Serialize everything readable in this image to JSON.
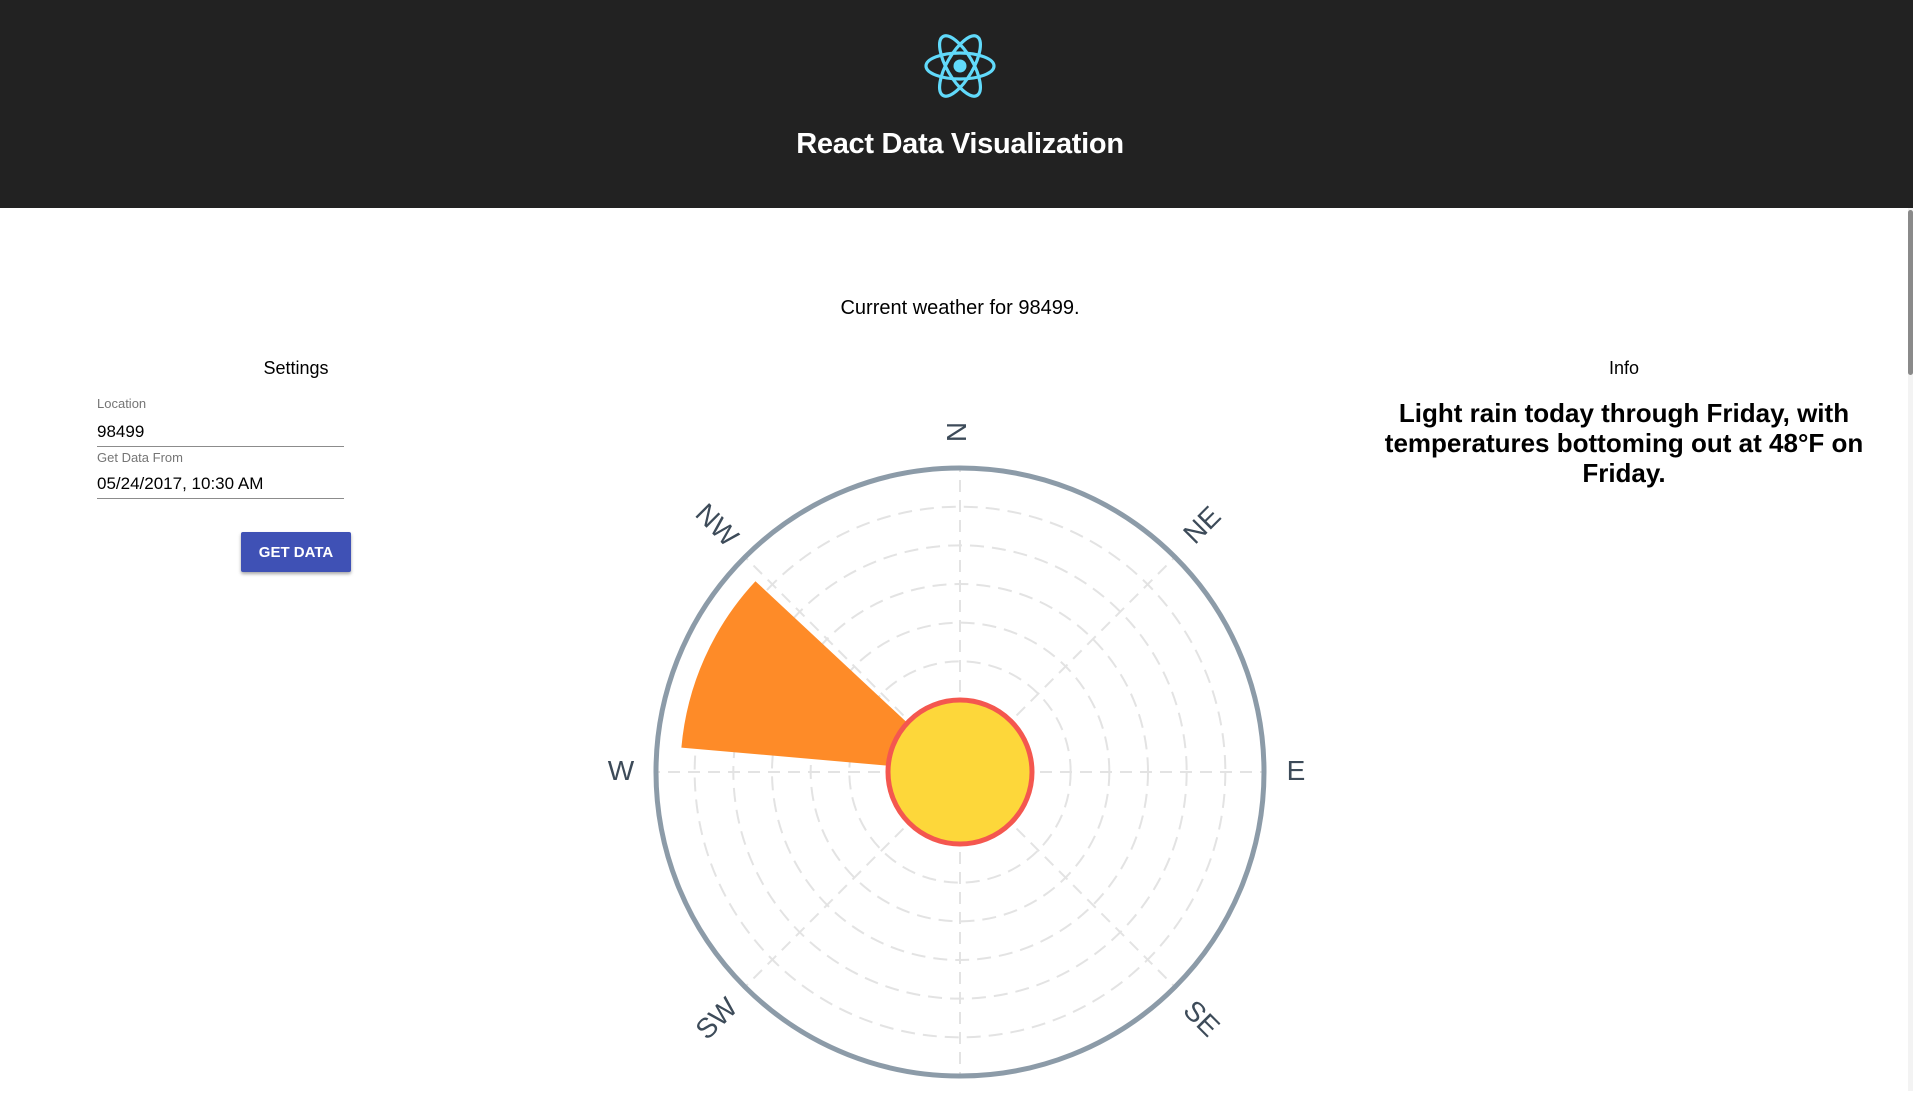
{
  "header": {
    "title": "React Data Visualization",
    "logo_icon": "react-atom-icon",
    "background": "#222222",
    "logo_color": "#61dafb"
  },
  "main": {
    "current_weather": "Current weather for 98499."
  },
  "settings": {
    "title": "Settings",
    "location_label": "Location",
    "location_value": "98499",
    "date_label": "Get Data From",
    "date_value": "05/24/2017, 10:30 AM",
    "button_label": "GET DATA",
    "button_color": "#3f51b5"
  },
  "info": {
    "title": "Info",
    "text": "Light rain today through Friday, with temperatures bottoming out at 48°F on Friday."
  },
  "chart_data": {
    "type": "polar",
    "directions": [
      "N",
      "NE",
      "E",
      "SE",
      "SW",
      "W",
      "NW"
    ],
    "wind_wedge": {
      "from_bearing_deg": 275,
      "to_bearing_deg": 313,
      "magnitude_fraction": 0.92,
      "color": "#fe8b28"
    },
    "center_circle": {
      "fill": "#fdd73a",
      "stroke": "#f4574f"
    },
    "ring_count": 5,
    "outer_ring_color": "#8c9ba8",
    "grid_color": "#e3e3e3"
  }
}
